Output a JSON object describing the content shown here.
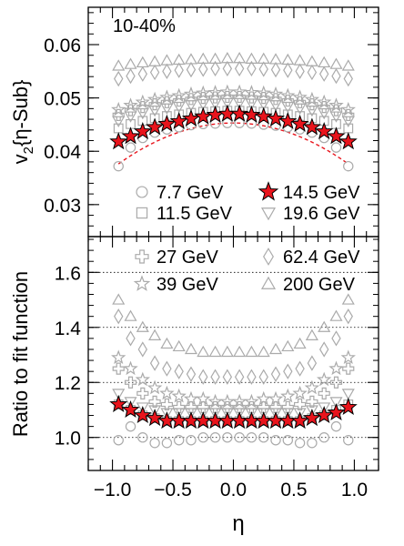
{
  "chart_data": [
    {
      "type": "scatter",
      "panel": "top",
      "centrality_label": "10-40%",
      "ylabel": "v2{η-Sub}",
      "ylabel_main": "v",
      "ylabel_sub": "2",
      "ylabel_rest": "{η-Sub}",
      "xlabel": "",
      "xlim": [
        -1.2,
        1.2
      ],
      "ylim": [
        0.024,
        0.067
      ],
      "yticks": [
        0.03,
        0.04,
        0.05,
        0.06
      ],
      "ytick_labels": [
        "0.03",
        "0.04",
        "0.05",
        "0.06"
      ],
      "grid": false,
      "legend_entries": [
        {
          "name": "7.7 GeV",
          "marker": "circle",
          "filled": false
        },
        {
          "name": "14.5 GeV",
          "marker": "star",
          "filled": true
        },
        {
          "name": "11.5 GeV",
          "marker": "square",
          "filled": false
        },
        {
          "name": "19.6 GeV",
          "marker": "triangle-down",
          "filled": false
        }
      ],
      "x": [
        -0.95,
        -0.85,
        -0.75,
        -0.65,
        -0.55,
        -0.45,
        -0.35,
        -0.25,
        -0.15,
        -0.05,
        0.05,
        0.15,
        0.25,
        0.35,
        0.45,
        0.55,
        0.65,
        0.75,
        0.85,
        0.95
      ],
      "series": [
        {
          "name": "7.7 GeV",
          "marker": "circle",
          "color": "#aaaaaa",
          "values": [
            0.0372,
            0.0407,
            0.0425,
            0.0435,
            0.0441,
            0.0445,
            0.0449,
            0.0451,
            0.0452,
            0.0453,
            0.0453,
            0.0452,
            0.045,
            0.0448,
            0.0445,
            0.0441,
            0.0435,
            0.0425,
            0.0407,
            0.0372
          ]
        },
        {
          "name": "11.5 GeV",
          "marker": "square",
          "color": "#aaaaaa",
          "values": [
            0.0443,
            0.0451,
            0.0457,
            0.0462,
            0.0466,
            0.0469,
            0.0472,
            0.0474,
            0.0475,
            0.0476,
            0.0476,
            0.0475,
            0.0474,
            0.0472,
            0.0469,
            0.0466,
            0.0462,
            0.0457,
            0.0451,
            0.0443
          ]
        },
        {
          "name": "19.6 GeV",
          "marker": "triangle-down",
          "color": "#aaaaaa",
          "values": [
            0.0457,
            0.0466,
            0.0472,
            0.0477,
            0.0481,
            0.0484,
            0.0487,
            0.0489,
            0.049,
            0.0491,
            0.0491,
            0.049,
            0.0489,
            0.0487,
            0.0484,
            0.0481,
            0.0477,
            0.0472,
            0.0466,
            0.0457
          ]
        },
        {
          "name": "27 GeV",
          "marker": "cross",
          "color": "#aaaaaa",
          "values": [
            0.0468,
            0.0477,
            0.0483,
            0.0488,
            0.0492,
            0.0495,
            0.0498,
            0.05,
            0.0501,
            0.0502,
            0.0502,
            0.0501,
            0.05,
            0.0498,
            0.0495,
            0.0492,
            0.0488,
            0.0483,
            0.0477,
            0.0468
          ]
        },
        {
          "name": "39 GeV",
          "marker": "star-open",
          "color": "#aaaaaa",
          "values": [
            0.0478,
            0.0486,
            0.0492,
            0.0497,
            0.0501,
            0.0504,
            0.0507,
            0.0509,
            0.051,
            0.0511,
            0.0511,
            0.051,
            0.0509,
            0.0507,
            0.0504,
            0.0501,
            0.0497,
            0.0492,
            0.0486,
            0.0478
          ]
        },
        {
          "name": "62.4 GeV",
          "marker": "diamond",
          "color": "#aaaaaa",
          "values": [
            0.0536,
            0.0541,
            0.0545,
            0.0548,
            0.055,
            0.0552,
            0.0553,
            0.0554,
            0.0555,
            0.0555,
            0.0555,
            0.0555,
            0.0554,
            0.0553,
            0.0552,
            0.055,
            0.0548,
            0.0545,
            0.0541,
            0.0536
          ]
        },
        {
          "name": "200 GeV",
          "marker": "triangle-up",
          "color": "#aaaaaa",
          "values": [
            0.056,
            0.0563,
            0.0566,
            0.0568,
            0.057,
            0.0571,
            0.0572,
            0.0573,
            0.0573,
            0.0574,
            0.0574,
            0.0573,
            0.0573,
            0.0572,
            0.0571,
            0.057,
            0.0568,
            0.0566,
            0.0563,
            0.056
          ]
        },
        {
          "name": "14.5 GeV",
          "marker": "star",
          "color": "#e8141c",
          "values": [
            0.0418,
            0.0428,
            0.0437,
            0.0445,
            0.0451,
            0.0456,
            0.0461,
            0.0465,
            0.0468,
            0.047,
            0.047,
            0.0468,
            0.0465,
            0.0461,
            0.0456,
            0.0451,
            0.0445,
            0.0437,
            0.0428,
            0.0418
          ]
        }
      ],
      "fit_curve": {
        "color": "#e8141c",
        "style": "dashed",
        "a": 0.0453,
        "b": -0.0085
      }
    },
    {
      "type": "scatter",
      "panel": "bottom",
      "ylabel": "Ratio to fit function",
      "xlabel": "η",
      "xlim": [
        -1.2,
        1.2
      ],
      "ylim": [
        0.88,
        1.73
      ],
      "yticks": [
        1.0,
        1.2,
        1.4,
        1.6
      ],
      "ytick_labels": [
        "1.0",
        "1.2",
        "1.4",
        "1.6"
      ],
      "xticks": [
        -1.0,
        -0.5,
        0.0,
        0.5,
        1.0
      ],
      "xtick_labels": [
        "−1.0",
        "−0.5",
        "0.0",
        "0.5",
        "1.0"
      ],
      "grid_lines": [
        1.0,
        1.2,
        1.4,
        1.6
      ],
      "legend_entries": [
        {
          "name": "27 GeV",
          "marker": "cross",
          "filled": false
        },
        {
          "name": "62.4 GeV",
          "marker": "diamond",
          "filled": false
        },
        {
          "name": "39 GeV",
          "marker": "star-open",
          "filled": false
        },
        {
          "name": "200 GeV",
          "marker": "triangle-up",
          "filled": false
        }
      ],
      "x": [
        -0.95,
        -0.85,
        -0.75,
        -0.65,
        -0.55,
        -0.45,
        -0.35,
        -0.25,
        -0.15,
        -0.05,
        0.05,
        0.15,
        0.25,
        0.35,
        0.45,
        0.55,
        0.65,
        0.75,
        0.85,
        0.95
      ],
      "series": [
        {
          "name": "7.7 GeV",
          "marker": "circle",
          "color": "#aaaaaa",
          "values": [
            0.99,
            1.04,
            1.0,
            0.98,
            0.98,
            0.99,
            0.99,
            1.0,
            1.0,
            1.0,
            1.0,
            1.0,
            1.0,
            0.99,
            0.99,
            0.98,
            0.98,
            1.0,
            1.04,
            0.99
          ]
        },
        {
          "name": "11.5 GeV",
          "marker": "square",
          "color": "#aaaaaa",
          "values": [
            1.12,
            1.1,
            1.08,
            1.07,
            1.06,
            1.06,
            1.06,
            1.06,
            1.06,
            1.06,
            1.06,
            1.06,
            1.06,
            1.06,
            1.06,
            1.06,
            1.07,
            1.08,
            1.1,
            1.12
          ]
        },
        {
          "name": "19.6 GeV",
          "marker": "triangle-down",
          "color": "#aaaaaa",
          "values": [
            1.16,
            1.13,
            1.11,
            1.1,
            1.09,
            1.09,
            1.09,
            1.09,
            1.09,
            1.09,
            1.09,
            1.09,
            1.09,
            1.09,
            1.09,
            1.09,
            1.1,
            1.11,
            1.13,
            1.16
          ]
        },
        {
          "name": "27 GeV",
          "marker": "cross",
          "color": "#aaaaaa",
          "values": [
            1.25,
            1.2,
            1.16,
            1.13,
            1.12,
            1.11,
            1.11,
            1.11,
            1.11,
            1.11,
            1.11,
            1.11,
            1.11,
            1.11,
            1.11,
            1.12,
            1.13,
            1.16,
            1.2,
            1.25
          ]
        },
        {
          "name": "39 GeV",
          "marker": "star-open",
          "color": "#aaaaaa",
          "values": [
            1.29,
            1.25,
            1.21,
            1.18,
            1.16,
            1.15,
            1.14,
            1.14,
            1.13,
            1.13,
            1.13,
            1.13,
            1.14,
            1.14,
            1.15,
            1.16,
            1.18,
            1.21,
            1.25,
            1.29
          ]
        },
        {
          "name": "62.4 GeV",
          "marker": "diamond",
          "color": "#aaaaaa",
          "values": [
            1.44,
            1.36,
            1.32,
            1.27,
            1.25,
            1.24,
            1.23,
            1.22,
            1.22,
            1.22,
            1.22,
            1.22,
            1.22,
            1.23,
            1.24,
            1.25,
            1.27,
            1.32,
            1.36,
            1.44
          ]
        },
        {
          "name": "200 GeV",
          "marker": "triangle-up",
          "color": "#aaaaaa",
          "values": [
            1.5,
            1.44,
            1.4,
            1.37,
            1.34,
            1.33,
            1.32,
            1.31,
            1.31,
            1.31,
            1.31,
            1.31,
            1.31,
            1.32,
            1.33,
            1.34,
            1.37,
            1.4,
            1.44,
            1.5
          ]
        },
        {
          "name": "14.5 GeV",
          "marker": "star",
          "color": "#e8141c",
          "values": [
            1.12,
            1.1,
            1.08,
            1.07,
            1.06,
            1.06,
            1.06,
            1.06,
            1.06,
            1.06,
            1.06,
            1.06,
            1.06,
            1.06,
            1.06,
            1.06,
            1.07,
            1.08,
            1.09,
            1.11
          ]
        }
      ]
    }
  ]
}
